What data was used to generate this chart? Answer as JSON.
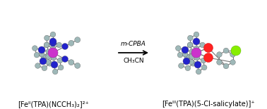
{
  "bg_color": "#ffffff",
  "arrow_text_line1": "m-CPBA",
  "arrow_text_line2": "CH₃CN",
  "atom_colors": {
    "C": "#9eb8b8",
    "N": "#2222cc",
    "Fe": "#cc33cc",
    "O": "#ff2222",
    "Cl": "#88ee00"
  },
  "bond_color": "#777777",
  "bond_lw": 0.8,
  "fig_width": 3.78,
  "fig_height": 1.55,
  "dpi": 100
}
